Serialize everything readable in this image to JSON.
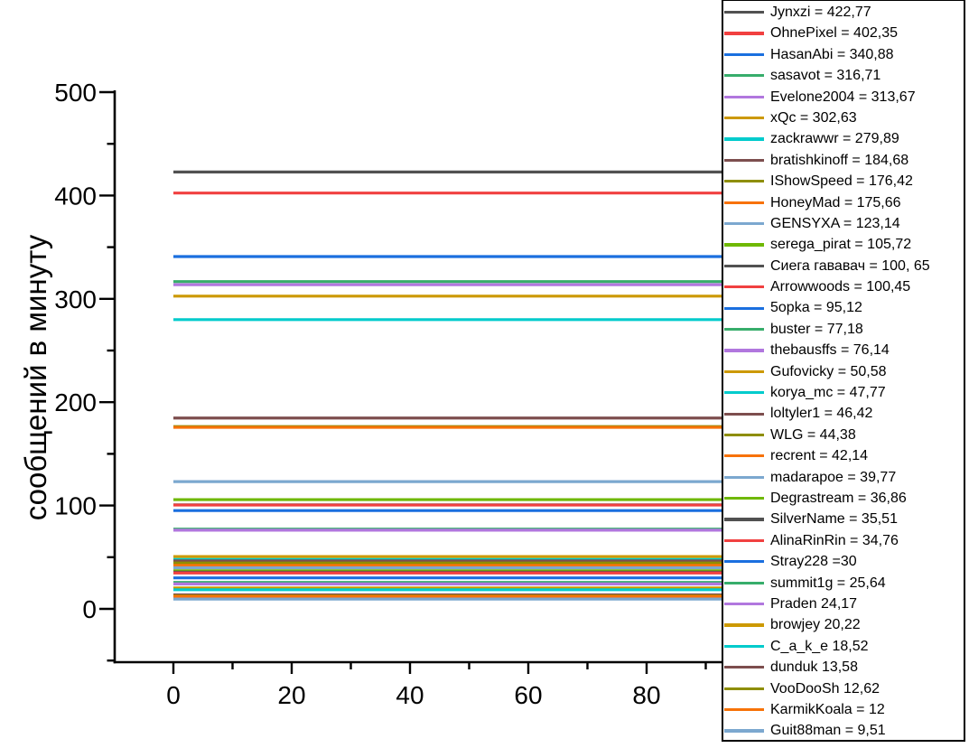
{
  "chart_data": {
    "type": "line",
    "title": "",
    "xlabel": "",
    "ylabel": "сообщений в минуту",
    "xlim": [
      -10,
      100
    ],
    "ylim": [
      -50,
      500
    ],
    "x_ticks": [
      0,
      20,
      40,
      60,
      80
    ],
    "x_minor_ticks": [
      10,
      30,
      50,
      70,
      90
    ],
    "y_ticks": [
      0,
      100,
      200,
      300,
      400,
      500
    ],
    "y_minor_ticks": [
      -50,
      50,
      150,
      250,
      350,
      450
    ],
    "grid": false,
    "legend_position": "right-overlay",
    "line_x_span": [
      0,
      100
    ],
    "note": "Each series is a horizontal line at constant y = value, spanning the x range",
    "series": [
      {
        "name": "Jynxzi",
        "value": 422.77,
        "color": "#515151",
        "legend_label": "Jynxzi = 422,77"
      },
      {
        "name": "OhnePixel",
        "value": 402.35,
        "color": "#F14040",
        "legend_label": "OhnePixel = 402,35"
      },
      {
        "name": "HasanAbi",
        "value": 340.88,
        "color": "#1A6FDF",
        "legend_label": "HasanAbi = 340,88"
      },
      {
        "name": "sasavot",
        "value": 316.71,
        "color": "#37AD6B",
        "legend_label": "sasavot = 316,71"
      },
      {
        "name": "Evelone2004",
        "value": 313.67,
        "color": "#B177DE",
        "legend_label": "Evelone2004 = 313,67"
      },
      {
        "name": "xQc",
        "value": 302.63,
        "color": "#CC9900",
        "legend_label": "xQc = 302,63"
      },
      {
        "name": "zackrawwr",
        "value": 279.89,
        "color": "#00CBCC",
        "legend_label": "zackrawwr = 279,89"
      },
      {
        "name": "bratishkinoff",
        "value": 184.68,
        "color": "#7D4E4E",
        "legend_label": "bratishkinoff = 184,68"
      },
      {
        "name": "IShowSpeed",
        "value": 176.42,
        "color": "#8E8E00",
        "legend_label": "IShowSpeed = 176,42"
      },
      {
        "name": "HoneyMad",
        "value": 175.66,
        "color": "#F77208",
        "legend_label": "HoneyMad = 175,66"
      },
      {
        "name": "GENSYXA",
        "value": 123.14,
        "color": "#7CA8CF",
        "legend_label": "GENSYXA = 123,14"
      },
      {
        "name": "serega_pirat",
        "value": 105.72,
        "color": "#6FB802",
        "legend_label": "serega_pirat = 105,72"
      },
      {
        "name": "Сиега гававач",
        "value": 100.65,
        "color": "#515151",
        "legend_label": "Сиега гававач = 100, 65"
      },
      {
        "name": "Arrowwoods",
        "value": 100.45,
        "color": "#F14040",
        "legend_label": "Arrowwoods = 100,45"
      },
      {
        "name": "5opka",
        "value": 95.12,
        "color": "#1A6FDF",
        "legend_label": "5opka = 95,12"
      },
      {
        "name": "buster",
        "value": 77.18,
        "color": "#37AD6B",
        "legend_label": "buster = 77,18"
      },
      {
        "name": "thebausffs",
        "value": 76.14,
        "color": "#B177DE",
        "legend_label": "thebausffs = 76,14"
      },
      {
        "name": "Gufovicky",
        "value": 50.58,
        "color": "#CC9900",
        "legend_label": "Gufovicky = 50,58"
      },
      {
        "name": "korya_mc",
        "value": 47.77,
        "color": "#00CBCC",
        "legend_label": "korya_mc = 47,77"
      },
      {
        "name": "loltyler1",
        "value": 46.42,
        "color": "#7D4E4E",
        "legend_label": "loltyler1 = 46,42"
      },
      {
        "name": "WLG",
        "value": 44.38,
        "color": "#8E8E00",
        "legend_label": "WLG = 44,38"
      },
      {
        "name": "recrent",
        "value": 42.14,
        "color": "#F77208",
        "legend_label": "recrent = 42,14"
      },
      {
        "name": "madarapoe",
        "value": 39.77,
        "color": "#7CA8CF",
        "legend_label": "madarapoe = 39,77"
      },
      {
        "name": "Degrastream",
        "value": 36.86,
        "color": "#6FB802",
        "legend_label": "Degrastream = 36,86"
      },
      {
        "name": "SilverName",
        "value": 35.51,
        "color": "#515151",
        "legend_label": "SilverName = 35,51"
      },
      {
        "name": "AlinaRinRin",
        "value": 34.76,
        "color": "#F14040",
        "legend_label": "AlinaRinRin = 34,76"
      },
      {
        "name": "Stray228",
        "value": 30,
        "color": "#1A6FDF",
        "legend_label": "Stray228 =30"
      },
      {
        "name": "summit1g",
        "value": 25.64,
        "color": "#37AD6B",
        "legend_label": "summit1g = 25,64"
      },
      {
        "name": "Praden",
        "value": 24.17,
        "color": "#B177DE",
        "legend_label": "Praden 24,17"
      },
      {
        "name": "browjey",
        "value": 20.22,
        "color": "#CC9900",
        "legend_label": "browjey 20,22"
      },
      {
        "name": "C_a_k_e",
        "value": 18.52,
        "color": "#00CBCC",
        "legend_label": "C_a_k_e 18,52"
      },
      {
        "name": "dunduk",
        "value": 13.58,
        "color": "#7D4E4E",
        "legend_label": "dunduk 13,58"
      },
      {
        "name": "VooDooSh",
        "value": 12.62,
        "color": "#8E8E00",
        "legend_label": "VooDooSh 12,62"
      },
      {
        "name": "KarmikKoala",
        "value": 12,
        "color": "#F77208",
        "legend_label": "KarmikKoala = 12"
      },
      {
        "name": "Guit88man",
        "value": 9.51,
        "color": "#7CA8CF",
        "legend_label": "Guit88man = 9,51"
      }
    ]
  }
}
